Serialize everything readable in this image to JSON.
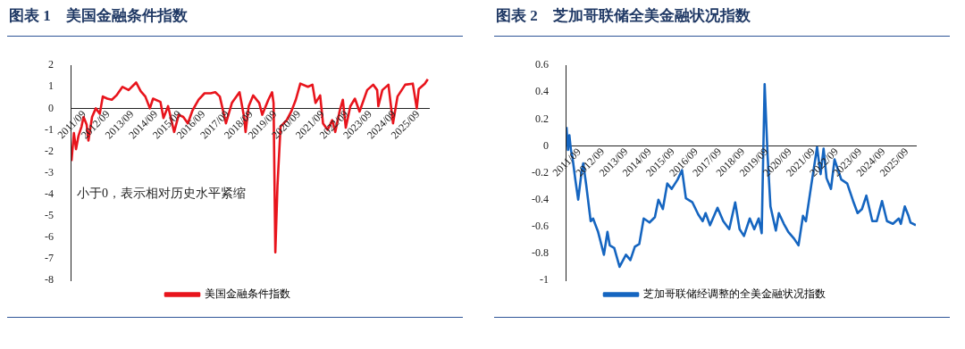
{
  "chart_data": [
    {
      "type": "line",
      "title": "图表 1　美国金融条件指数",
      "legend": "bottom",
      "grid": false,
      "annotations": [
        "小于0，表示相对历史水平紧缩"
      ],
      "xlim": [
        "2011-09-01",
        "2026-09-01"
      ],
      "xticks": [
        {
          "value": "2011-09",
          "label": "2011/09"
        },
        {
          "value": "2012-09",
          "label": "2012/09"
        },
        {
          "value": "2013-09",
          "label": "2013/09"
        },
        {
          "value": "2014-09",
          "label": "2014/09"
        },
        {
          "value": "2015-09",
          "label": "2015/09"
        },
        {
          "value": "2016-09",
          "label": "2016/09"
        },
        {
          "value": "2017-09",
          "label": "2017/09"
        },
        {
          "value": "2018-09",
          "label": "2018/09"
        },
        {
          "value": "2019-09",
          "label": "2019/09"
        },
        {
          "value": "2020-09",
          "label": "2020/09"
        },
        {
          "value": "2021-09",
          "label": "2021/09"
        },
        {
          "value": "2022-09",
          "label": "2022/09"
        },
        {
          "value": "2023-09",
          "label": "2023/09"
        },
        {
          "value": "2024-09",
          "label": "2024/09"
        },
        {
          "value": "2025-09",
          "label": "2025/09"
        }
      ],
      "ylim": [
        -8,
        2
      ],
      "yticks": [
        -8,
        -7,
        -6,
        -5,
        -4,
        -3,
        -2,
        -1,
        0,
        1,
        2
      ],
      "x": [
        "2011-09-01",
        "2011-10-08",
        "2011-11-10",
        "2011-12-16",
        "2012-02-02",
        "2012-03-04",
        "2012-04-20",
        "2012-05-18",
        "2012-07-13",
        "2012-09-08",
        "2012-11-08",
        "2012-12-24",
        "2013-03-03",
        "2013-05-12",
        "2013-07-21",
        "2013-10-22",
        "2014-01-24",
        "2014-05-19",
        "2014-07-28",
        "2014-10-07",
        "2014-12-16",
        "2015-02-02",
        "2015-05-27",
        "2015-07-12",
        "2015-09-21",
        "2015-12-23",
        "2016-03-02",
        "2016-05-11",
        "2016-07-20",
        "2016-09-29",
        "2017-01-01",
        "2017-04-02",
        "2017-07-04",
        "2017-09-13",
        "2017-11-22",
        "2018-02-24",
        "2018-05-26",
        "2018-09-20",
        "2018-11-29",
        "2018-12-22",
        "2019-02-08",
        "2019-04-17",
        "2019-07-19",
        "2019-09-04",
        "2019-12-06",
        "2020-02-01",
        "2020-02-24",
        "2020-03-22",
        "2020-04-24",
        "2020-06-10",
        "2020-09-12",
        "2020-11-21",
        "2021-01-30",
        "2021-04-09",
        "2021-08-03",
        "2021-10-12",
        "2021-11-28",
        "2022-02-07",
        "2022-03-23",
        "2022-06-02",
        "2022-08-11",
        "2022-09-27",
        "2022-12-05",
        "2023-01-21",
        "2023-03-07",
        "2023-05-16",
        "2023-07-25",
        "2023-10-04",
        "2024-01-29",
        "2024-04-30",
        "2024-06-30",
        "2024-07-18",
        "2024-09-18",
        "2024-12-20",
        "2025-02-28",
        "2025-05-08",
        "2025-09-03",
        "2025-12-28",
        "2026-02-27",
        "2026-03-30",
        "2026-07-01",
        "2026-08-15"
      ],
      "series": [
        {
          "name": "美国金融条件指数",
          "color": "#e8141c",
          "values": [
            -2.45,
            -1.15,
            -1.9,
            -1.3,
            -0.85,
            -0.4,
            -0.75,
            -1.5,
            -0.4,
            0,
            -0.25,
            0.55,
            0.45,
            0.4,
            0.6,
            1.0,
            0.85,
            1.2,
            0.8,
            0.55,
            0,
            0.45,
            0.3,
            -0.45,
            0.1,
            -1.1,
            -0.3,
            -0.4,
            -0.7,
            -0.1,
            0.4,
            0.7,
            0.7,
            0.75,
            0.55,
            -0.7,
            0.25,
            0.75,
            -0.4,
            -1.1,
            0.1,
            0.6,
            0.25,
            -0.3,
            0.4,
            0.75,
            0.25,
            -6.7,
            -3.6,
            -0.85,
            -0.55,
            -0.15,
            0.4,
            1.15,
            1.0,
            1.1,
            0.25,
            0.6,
            -0.7,
            -1.0,
            -0.55,
            -1.1,
            -0.1,
            0.4,
            -0.9,
            0.1,
            0.45,
            -0.15,
            0.85,
            1.1,
            0.85,
            0.1,
            0.85,
            1.1,
            -0.7,
            0.55,
            1.1,
            1.15,
            0,
            0.9,
            1.15,
            1.35
          ]
        }
      ]
    },
    {
      "type": "line",
      "title": "图表 2　芝加哥联储全美金融状况指数",
      "legend": "bottom",
      "grid": false,
      "xlim": [
        "2011-09-01",
        "2026-08-10"
      ],
      "xticks": [
        {
          "value": "2011-09",
          "label": "2011/09"
        },
        {
          "value": "2012-09",
          "label": "2012/09"
        },
        {
          "value": "2013-09",
          "label": "2013/09"
        },
        {
          "value": "2014-09",
          "label": "2014/09"
        },
        {
          "value": "2015-09",
          "label": "2015/09"
        },
        {
          "value": "2016-09",
          "label": "2016/09"
        },
        {
          "value": "2017-09",
          "label": "2017/09"
        },
        {
          "value": "2018-09",
          "label": "2018/09"
        },
        {
          "value": "2019-09",
          "label": "2019/09"
        },
        {
          "value": "2020-09",
          "label": "2020/09"
        },
        {
          "value": "2021-09",
          "label": "2021/09"
        },
        {
          "value": "2022-09",
          "label": "2022/09"
        },
        {
          "value": "2023-09",
          "label": "2023/09"
        },
        {
          "value": "2024-09",
          "label": "2024/09"
        },
        {
          "value": "2025-09",
          "label": "2025/09"
        }
      ],
      "ylim": [
        -1,
        0.6
      ],
      "yticks": [
        -1,
        -0.8,
        -0.6,
        -0.4,
        -0.2,
        0,
        0.2,
        0.4,
        0.6
      ],
      "x": [
        "2011-09-01",
        "2011-09-24",
        "2011-10-16",
        "2011-11-09",
        "2011-12-02",
        "2012-01-17",
        "2012-03-02",
        "2012-04-27",
        "2012-05-20",
        "2012-07-05",
        "2012-09-13",
        "2012-10-20",
        "2013-01-07",
        "2013-04-08",
        "2013-06-02",
        "2013-07-08",
        "2013-09-16",
        "2013-12-08",
        "2014-03-18",
        "2014-05-26",
        "2014-08-04",
        "2014-10-12",
        "2014-12-20",
        "2015-03-21",
        "2015-06-13",
        "2015-08-07",
        "2015-10-15",
        "2015-12-23",
        "2016-03-01",
        "2016-06-02",
        "2016-08-10",
        "2016-10-09",
        "2017-01-19",
        "2017-04-20",
        "2017-06-28",
        "2017-08-13",
        "2017-10-21",
        "2018-02-15",
        "2018-05-16",
        "2018-08-17",
        "2018-11-18",
        "2019-01-26",
        "2019-04-04",
        "2019-07-04",
        "2019-09-12",
        "2019-11-20",
        "2020-01-06",
        "2020-02-21",
        "2020-04-07",
        "2020-05-22",
        "2020-08-14",
        "2020-09-30",
        "2020-12-17",
        "2021-02-25",
        "2021-05-26",
        "2021-08-03",
        "2021-10-12",
        "2021-11-27",
        "2022-02-19",
        "2022-05-20",
        "2022-07-14",
        "2022-08-30",
        "2022-10-15",
        "2022-12-23",
        "2023-02-17",
        "2023-06-02",
        "2023-09-03",
        "2023-12-04",
        "2024-02-12",
        "2024-04-20",
        "2024-06-28",
        "2024-09-29",
        "2024-12-07",
        "2025-02-28",
        "2025-05-16",
        "2025-08-17",
        "2025-11-17",
        "2025-12-19",
        "2026-02-18",
        "2026-04-17",
        "2026-05-19",
        "2026-08-10"
      ],
      "series": [
        {
          "name": "芝加哥联储经调整的全美金融状况指数",
          "color": "#1565c0",
          "values": [
            0.14,
            -0.03,
            0.08,
            -0.03,
            -0.08,
            -0.25,
            -0.4,
            -0.18,
            -0.13,
            -0.29,
            -0.56,
            -0.54,
            -0.64,
            -0.81,
            -0.64,
            -0.74,
            -0.76,
            -0.9,
            -0.81,
            -0.85,
            -0.75,
            -0.73,
            -0.54,
            -0.57,
            -0.53,
            -0.4,
            -0.47,
            -0.28,
            -0.32,
            -0.25,
            -0.18,
            -0.39,
            -0.42,
            -0.51,
            -0.56,
            -0.5,
            -0.59,
            -0.46,
            -0.56,
            -0.62,
            -0.42,
            -0.62,
            -0.67,
            -0.54,
            -0.62,
            -0.54,
            -0.65,
            0.46,
            -0.07,
            -0.45,
            -0.63,
            -0.5,
            -0.58,
            -0.64,
            -0.69,
            -0.74,
            -0.52,
            -0.56,
            -0.29,
            -0.01,
            -0.21,
            -0.02,
            -0.24,
            -0.32,
            -0.1,
            -0.25,
            -0.28,
            -0.41,
            -0.5,
            -0.47,
            -0.37,
            -0.56,
            -0.56,
            -0.41,
            -0.56,
            -0.58,
            -0.54,
            -0.58,
            -0.45,
            -0.52,
            -0.57,
            -0.59
          ]
        }
      ]
    }
  ]
}
